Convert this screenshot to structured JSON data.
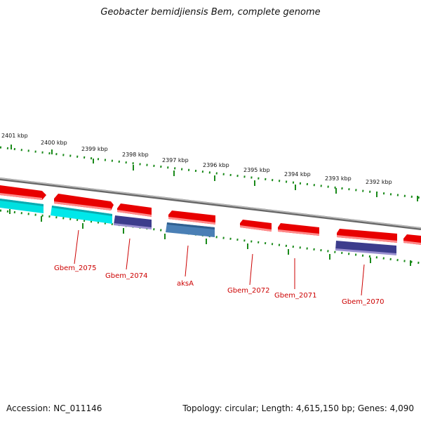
{
  "title": "Geobacter bemidjiensis Bem, complete genome",
  "footer": {
    "accession": "Accession: NC_011146",
    "summary": "Topology: circular; Length: 4,615,150 bp; Genes: 4,090"
  },
  "colors": {
    "backbone": "#888888",
    "ticks": "#1a8a1a",
    "gene_red": "#e80000",
    "gene_cyan": "#00e5e5",
    "gene_navy": "#3c3c8c",
    "gene_steel": "#4a7fb5",
    "label": "#cc0000"
  },
  "scale_labels": [
    "2401 kbp",
    "2400 kbp",
    "2399 kbp",
    "2398 kbp",
    "2397 kbp",
    "2396 kbp",
    "2395 kbp",
    "2394 kbp",
    "2393 kbp",
    "2392 kbp"
  ],
  "gene_labels": [
    "Gbem_2075",
    "Gbem_2074",
    "aksA",
    "Gbem_2072",
    "Gbem_2071",
    "Gbem_2070"
  ]
}
